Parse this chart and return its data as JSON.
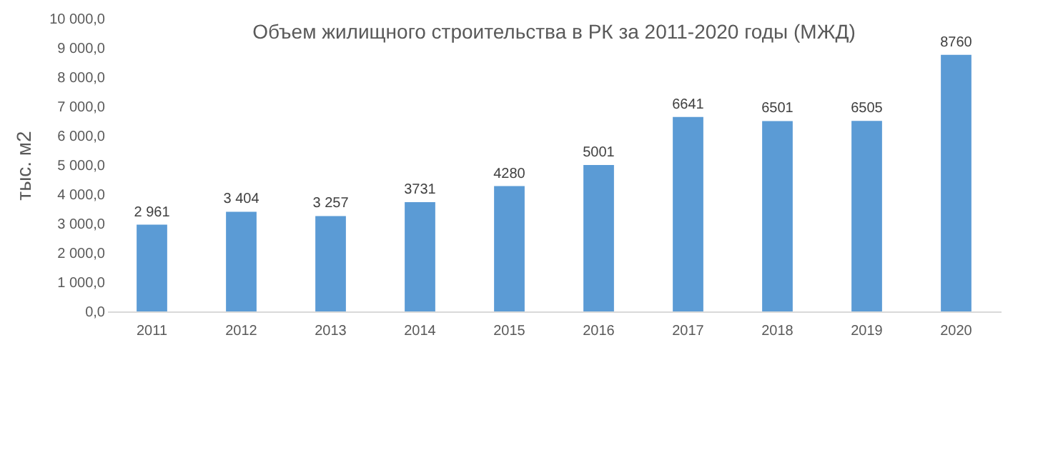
{
  "chart_data": {
    "type": "bar",
    "title": "Объем жилищного строительства в РК за 2011-2020 годы (МЖД)",
    "ylabel": "тыс. м2",
    "categories": [
      "2011",
      "2012",
      "2013",
      "2014",
      "2015",
      "2016",
      "2017",
      "2018",
      "2019",
      "2020"
    ],
    "values": [
      2961,
      3404,
      3257,
      3731,
      4280,
      5001,
      6641,
      6501,
      6505,
      8760
    ],
    "value_labels": [
      "2 961",
      "3 404",
      "3 257",
      "3731",
      "4280",
      "5001",
      "6641",
      "6501",
      "6505",
      "8760"
    ],
    "color": "#5b9bd5",
    "ylim": [
      0,
      10000
    ],
    "yticks": [
      {
        "value": 0,
        "label": "0,0"
      },
      {
        "value": 1000,
        "label": "1 000,0"
      },
      {
        "value": 2000,
        "label": "2 000,0"
      },
      {
        "value": 3000,
        "label": "3 000,0"
      },
      {
        "value": 4000,
        "label": "4 000,0"
      },
      {
        "value": 5000,
        "label": "5 000,0"
      },
      {
        "value": 6000,
        "label": "6 000,0"
      },
      {
        "value": 7000,
        "label": "7 000,0"
      },
      {
        "value": 8000,
        "label": "8 000,0"
      },
      {
        "value": 9000,
        "label": "9 000,0"
      },
      {
        "value": 10000,
        "label": "10 000,0"
      }
    ],
    "grid": false
  }
}
